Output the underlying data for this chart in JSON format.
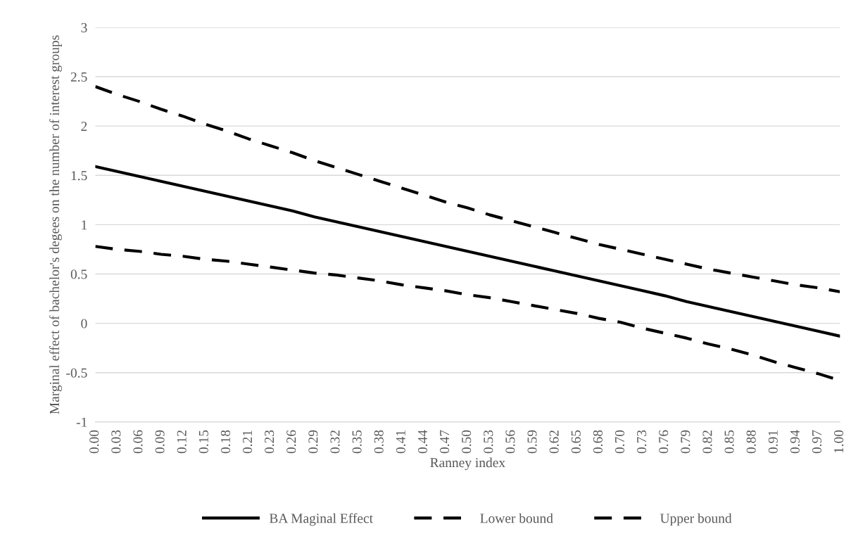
{
  "chart_data": {
    "type": "line",
    "xlabel": "Ranney index",
    "ylabel": "Marginal effect of bachelor's degees on the number of interest groups",
    "categories": [
      "0.00",
      "0.03",
      "0.06",
      "0.09",
      "0.12",
      "0.15",
      "0.18",
      "0.21",
      "0.23",
      "0.26",
      "0.29",
      "0.32",
      "0.35",
      "0.38",
      "0.41",
      "0.44",
      "0.47",
      "0.50",
      "0.53",
      "0.56",
      "0.59",
      "0.62",
      "0.65",
      "0.68",
      "0.70",
      "0.73",
      "0.76",
      "0.79",
      "0.82",
      "0.85",
      "0.88",
      "0.91",
      "0.94",
      "0.97",
      "1.00"
    ],
    "series": [
      {
        "name": "BA Maginal Effect",
        "color": "#000000",
        "line_style": "solid",
        "values": [
          1.59,
          1.54,
          1.49,
          1.44,
          1.39,
          1.34,
          1.29,
          1.24,
          1.19,
          1.14,
          1.08,
          1.03,
          0.98,
          0.93,
          0.88,
          0.83,
          0.78,
          0.73,
          0.68,
          0.63,
          0.58,
          0.53,
          0.48,
          0.43,
          0.38,
          0.33,
          0.28,
          0.22,
          0.17,
          0.12,
          0.07,
          0.02,
          -0.03,
          -0.08,
          -0.13
        ]
      },
      {
        "name": "Lower bound",
        "color": "#000000",
        "line_style": "dashed",
        "values": [
          0.78,
          0.75,
          0.73,
          0.7,
          0.68,
          0.65,
          0.63,
          0.6,
          0.57,
          0.54,
          0.51,
          0.49,
          0.46,
          0.43,
          0.39,
          0.36,
          0.33,
          0.29,
          0.26,
          0.22,
          0.18,
          0.14,
          0.1,
          0.05,
          0.01,
          -0.05,
          -0.1,
          -0.15,
          -0.21,
          -0.26,
          -0.32,
          -0.39,
          -0.45,
          -0.51,
          -0.58
        ]
      },
      {
        "name": "Upper bound",
        "color": "#000000",
        "line_style": "dashed",
        "values": [
          2.4,
          2.32,
          2.25,
          2.17,
          2.1,
          2.02,
          1.95,
          1.87,
          1.8,
          1.73,
          1.65,
          1.58,
          1.51,
          1.44,
          1.37,
          1.3,
          1.23,
          1.17,
          1.1,
          1.04,
          0.98,
          0.92,
          0.86,
          0.8,
          0.75,
          0.7,
          0.65,
          0.6,
          0.55,
          0.51,
          0.47,
          0.43,
          0.39,
          0.36,
          0.32
        ]
      }
    ],
    "ylim": [
      -1,
      3
    ],
    "yticks": [
      -1,
      -0.5,
      0,
      0.5,
      1,
      1.5,
      2,
      2.5,
      3
    ],
    "grid": "y",
    "legend": "bottom",
    "marker": "none"
  }
}
